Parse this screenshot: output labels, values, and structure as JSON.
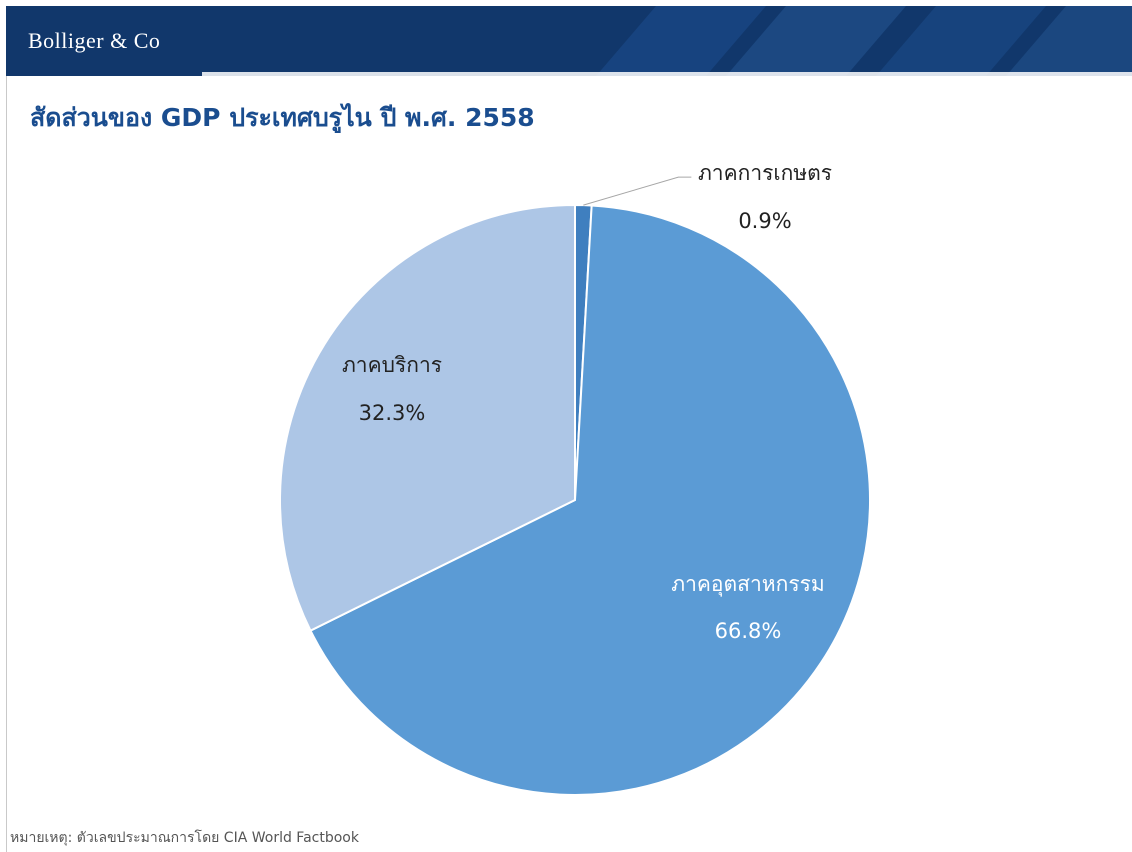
{
  "header": {
    "brand": "Bolliger & Co",
    "colors": {
      "bar": "#11376b",
      "accent": "#1d4f8f"
    }
  },
  "title": "สัดส่วนของ GDP ประเทศบรูไน ปี พ.ศ. 2558",
  "footnote": "หมายเหตุ: ตัวเลขประมาณการโดย CIA World Factbook",
  "chart_data": {
    "type": "pie",
    "title": "สัดส่วนของ GDP ประเทศบรูไน ปี พ.ศ. 2558",
    "unit": "%",
    "slices": [
      {
        "label": "ภาคการเกษตร",
        "value": 0.9,
        "value_label": "0.9%",
        "color": "#3f7fbf",
        "label_color": "#222222"
      },
      {
        "label": "ภาคอุตสาหกรรม",
        "value": 66.8,
        "value_label": "66.8%",
        "color": "#5b9bd5",
        "label_color": "#ffffff"
      },
      {
        "label": "ภาคบริการ",
        "value": 32.3,
        "value_label": "32.3%",
        "color": "#adc6e6",
        "label_color": "#222222"
      }
    ],
    "start_angle_deg": 0,
    "direction": "clockwise",
    "legend": "none",
    "data_labels": "on"
  }
}
